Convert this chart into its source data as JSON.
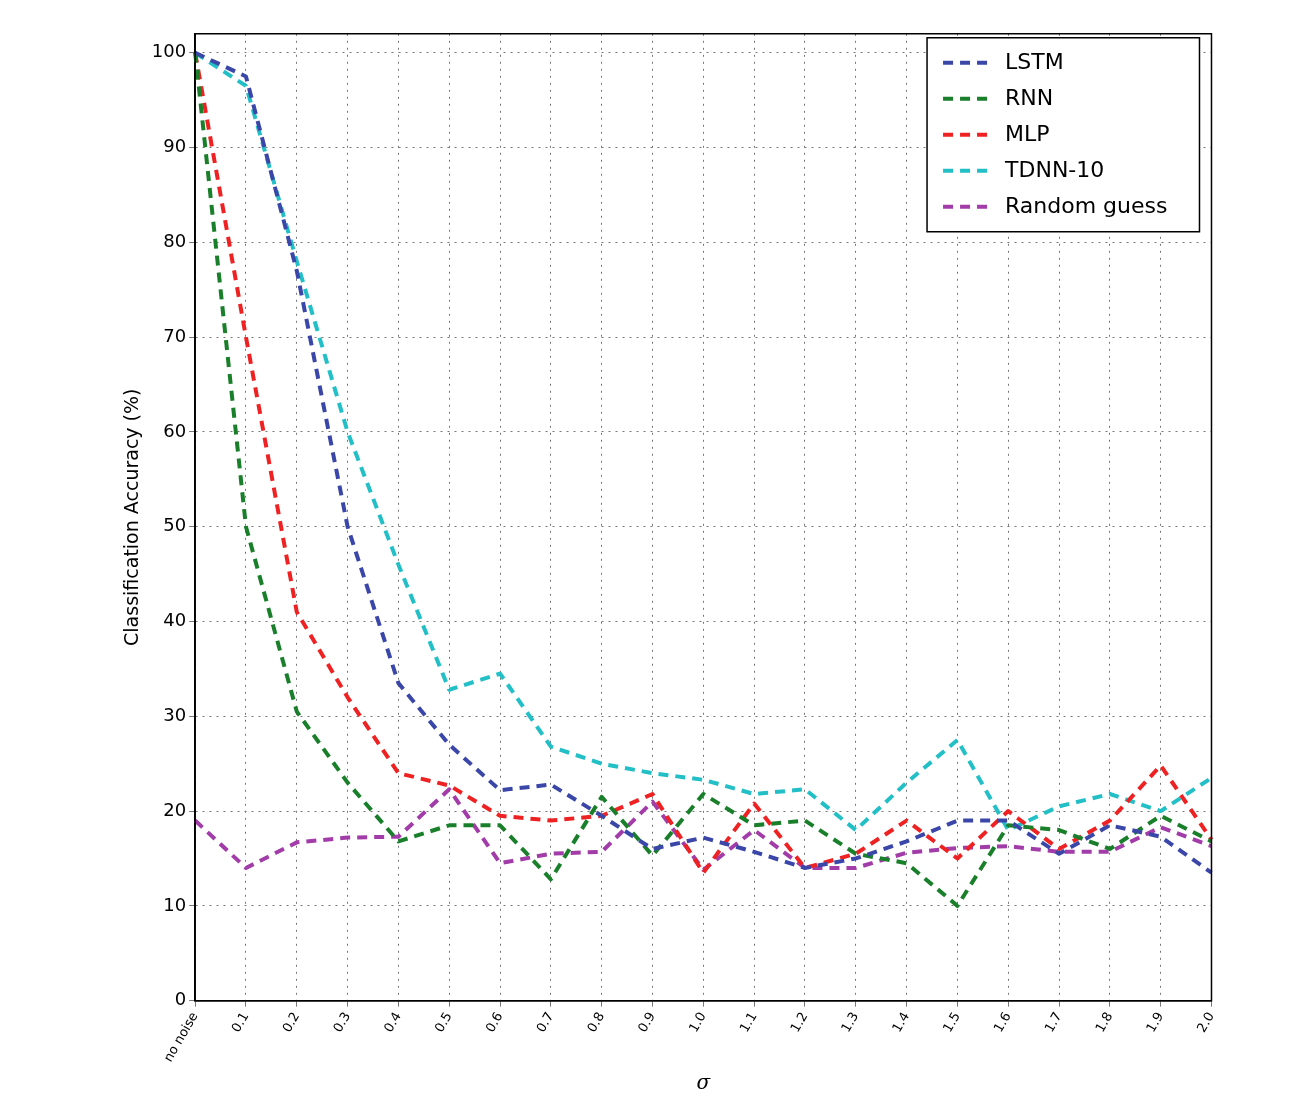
{
  "chart_data": {
    "type": "line",
    "xlabel": "σ",
    "ylabel": "Classification Accuracy (%)",
    "categories": [
      "no noise",
      "0.1",
      "0.2",
      "0.3",
      "0.4",
      "0.5",
      "0.6",
      "0.7",
      "0.8",
      "0.9",
      "1.0",
      "1.1",
      "1.2",
      "1.3",
      "1.4",
      "1.5",
      "1.6",
      "1.7",
      "1.8",
      "1.9",
      "2.0"
    ],
    "series": [
      {
        "name": "LSTM",
        "color": "#3a47a8",
        "values": [
          100,
          97.5,
          77,
          50,
          33.5,
          27,
          22.2,
          22.8,
          19.5,
          16,
          17.2,
          15.7,
          14,
          15,
          16.8,
          19,
          19,
          15.5,
          18.5,
          17.3,
          13.5
        ]
      },
      {
        "name": "RNN",
        "color": "#1a7f2a",
        "values": [
          100,
          50,
          30.5,
          23,
          16.8,
          18.5,
          18.5,
          12.8,
          21.5,
          15.3,
          21.8,
          18.5,
          19,
          15.5,
          14.5,
          10,
          18.5,
          18,
          16,
          19.5,
          16.8
        ]
      },
      {
        "name": "MLP",
        "color": "#ee2222",
        "values": [
          100,
          70,
          41,
          32,
          24,
          22.7,
          19.5,
          19,
          19.5,
          21.8,
          13.5,
          20.8,
          14,
          15.5,
          19,
          15,
          20,
          16,
          19,
          24.8,
          17
        ]
      },
      {
        "name": "TDNN-10",
        "color": "#22bfc6",
        "values": [
          100,
          96.5,
          78,
          60,
          46,
          32.8,
          34.5,
          26.8,
          25,
          24,
          23.3,
          21.8,
          22.3,
          18,
          23,
          27.5,
          18,
          20.5,
          21.8,
          20,
          23.5
        ]
      },
      {
        "name": "Random guess",
        "color": "#a23ca8",
        "values": [
          19,
          14,
          16.7,
          17.2,
          17.3,
          22.3,
          14.5,
          15.5,
          15.7,
          21,
          13.8,
          18,
          14,
          14,
          15.6,
          16.1,
          16.3,
          15.7,
          15.7,
          18.3,
          16.3
        ]
      }
    ],
    "ylim": [
      0,
      102
    ],
    "yticks": [
      0,
      10,
      20,
      30,
      40,
      50,
      60,
      70,
      80,
      90,
      100
    ],
    "grid": true,
    "legend": "top right",
    "line_style": "dashed",
    "marker": "none"
  }
}
